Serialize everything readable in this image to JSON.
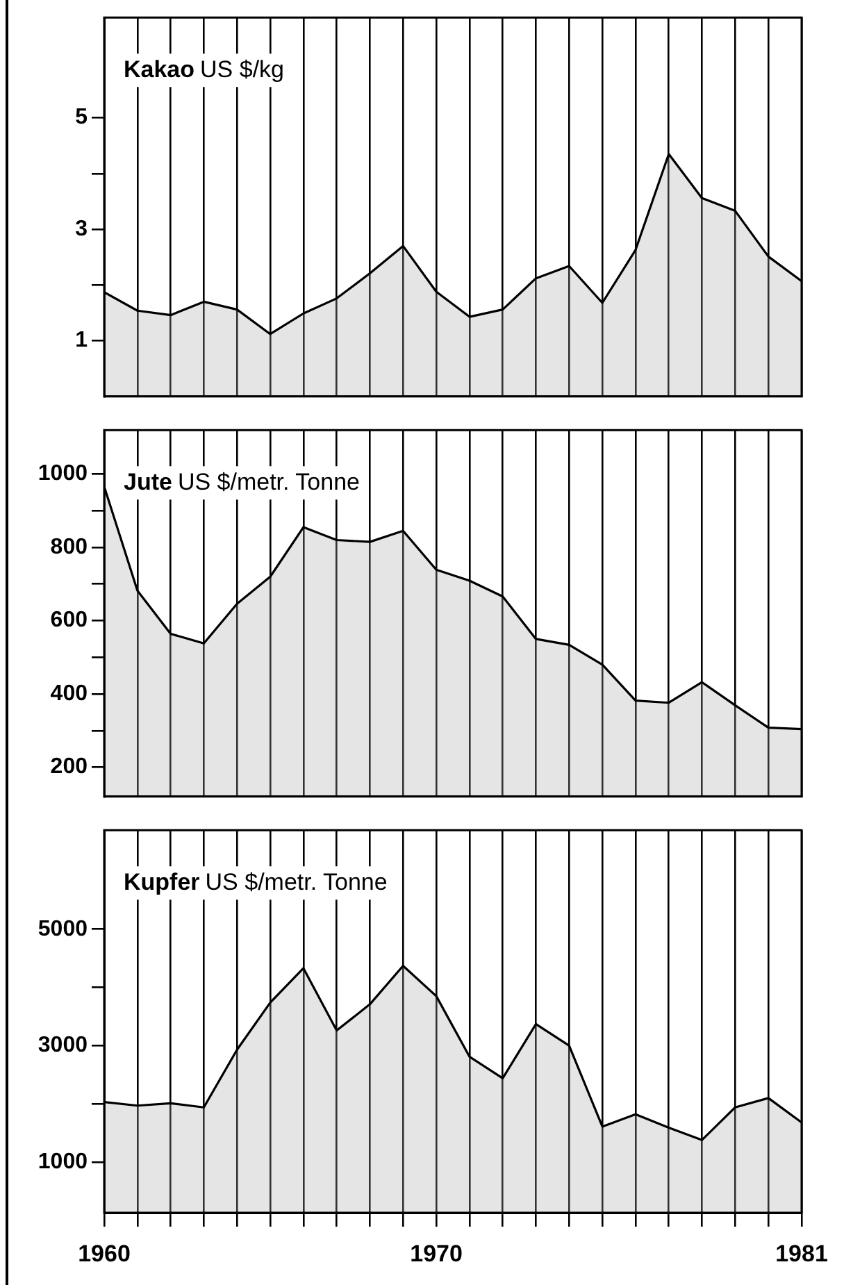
{
  "chart_data": [
    {
      "type": "area",
      "title": "Kakao",
      "ylabel": "US $/kg",
      "x": [
        1960,
        1961,
        1962,
        1963,
        1964,
        1965,
        1966,
        1967,
        1968,
        1969,
        1970,
        1971,
        1972,
        1973,
        1974,
        1975,
        1976,
        1977,
        1978,
        1979,
        1980,
        1981
      ],
      "series": [
        {
          "color": "#000000",
          "values": [
            1.87,
            1.54,
            1.46,
            1.7,
            1.56,
            1.12,
            1.49,
            1.76,
            2.21,
            2.7,
            1.88,
            1.43,
            1.56,
            2.12,
            2.34,
            1.68,
            2.63,
            4.35,
            3.56,
            3.33,
            2.51,
            2.07
          ]
        }
      ],
      "xlim": [
        1960,
        1981
      ],
      "xticks": [
        {
          "value": 1960,
          "label": null
        },
        {
          "value": 1961,
          "label": null
        },
        {
          "value": 1962,
          "label": null
        },
        {
          "value": 1963,
          "label": null
        },
        {
          "value": 1964,
          "label": null
        },
        {
          "value": 1965,
          "label": null
        },
        {
          "value": 1966,
          "label": null
        },
        {
          "value": 1967,
          "label": null
        },
        {
          "value": 1968,
          "label": null
        },
        {
          "value": 1969,
          "label": null
        },
        {
          "value": 1970,
          "label": null
        },
        {
          "value": 1971,
          "label": null
        },
        {
          "value": 1972,
          "label": null
        },
        {
          "value": 1973,
          "label": null
        },
        {
          "value": 1974,
          "label": null
        },
        {
          "value": 1975,
          "label": null
        },
        {
          "value": 1976,
          "label": null
        },
        {
          "value": 1977,
          "label": null
        },
        {
          "value": 1978,
          "label": null
        },
        {
          "value": 1979,
          "label": null
        },
        {
          "value": 1980,
          "label": null
        },
        {
          "value": 1981,
          "label": null
        }
      ],
      "ylim": [
        0,
        6.8
      ],
      "yticks": [
        1,
        {
          "value": 2,
          "label": null
        },
        3,
        {
          "value": 4,
          "label": null
        },
        5
      ],
      "grid": "x",
      "legend": false,
      "tick_labels": "y"
    },
    {
      "type": "area",
      "title": "Jute",
      "ylabel": "US $/metr. Tonne",
      "x": [
        1960,
        1961,
        1962,
        1963,
        1964,
        1965,
        1966,
        1967,
        1968,
        1969,
        1970,
        1971,
        1972,
        1973,
        1974,
        1975,
        1976,
        1977,
        1978,
        1979,
        1980,
        1981
      ],
      "series": [
        {
          "color": "#000000",
          "values": [
            966,
            682,
            564,
            538,
            646,
            720,
            855,
            820,
            815,
            845,
            739,
            709,
            666,
            550,
            534,
            480,
            382,
            376,
            432,
            369,
            308,
            304
          ]
        }
      ],
      "xlim": [
        1960,
        1981
      ],
      "xticks": [
        {
          "value": 1960,
          "label": null
        },
        {
          "value": 1961,
          "label": null
        },
        {
          "value": 1962,
          "label": null
        },
        {
          "value": 1963,
          "label": null
        },
        {
          "value": 1964,
          "label": null
        },
        {
          "value": 1965,
          "label": null
        },
        {
          "value": 1966,
          "label": null
        },
        {
          "value": 1967,
          "label": null
        },
        {
          "value": 1968,
          "label": null
        },
        {
          "value": 1969,
          "label": null
        },
        {
          "value": 1970,
          "label": null
        },
        {
          "value": 1971,
          "label": null
        },
        {
          "value": 1972,
          "label": null
        },
        {
          "value": 1973,
          "label": null
        },
        {
          "value": 1974,
          "label": null
        },
        {
          "value": 1975,
          "label": null
        },
        {
          "value": 1976,
          "label": null
        },
        {
          "value": 1977,
          "label": null
        },
        {
          "value": 1978,
          "label": null
        },
        {
          "value": 1979,
          "label": null
        },
        {
          "value": 1980,
          "label": null
        },
        {
          "value": 1981,
          "label": null
        }
      ],
      "ylim": [
        120,
        1120
      ],
      "yticks": [
        200,
        {
          "value": 300,
          "label": null
        },
        400,
        {
          "value": 500,
          "label": null
        },
        600,
        {
          "value": 700,
          "label": null
        },
        800,
        {
          "value": 900,
          "label": null
        },
        1000
      ],
      "grid": "x",
      "legend": false,
      "tick_labels": "y"
    },
    {
      "type": "area",
      "title": "Kupfer",
      "ylabel": "US $/metr. Tonne",
      "x": [
        1960,
        1961,
        1962,
        1963,
        1964,
        1965,
        1966,
        1967,
        1968,
        1969,
        1970,
        1971,
        1972,
        1973,
        1974,
        1975,
        1976,
        1977,
        1978,
        1979,
        1980,
        1981
      ],
      "series": [
        {
          "color": "#000000",
          "values": [
            2030,
            1970,
            2010,
            1940,
            2930,
            3740,
            4330,
            3260,
            3710,
            4370,
            3850,
            2810,
            2440,
            3370,
            3000,
            1610,
            1820,
            1590,
            1380,
            1940,
            2100,
            1680
          ]
        }
      ],
      "xlim": [
        1960,
        1981
      ],
      "xticks": [
        1960,
        {
          "value": 1961,
          "label": null
        },
        {
          "value": 1962,
          "label": null
        },
        {
          "value": 1963,
          "label": null
        },
        {
          "value": 1964,
          "label": null
        },
        {
          "value": 1965,
          "label": null
        },
        {
          "value": 1966,
          "label": null
        },
        {
          "value": 1967,
          "label": null
        },
        {
          "value": 1968,
          "label": null
        },
        {
          "value": 1969,
          "label": null
        },
        1970,
        {
          "value": 1971,
          "label": null
        },
        {
          "value": 1972,
          "label": null
        },
        {
          "value": 1973,
          "label": null
        },
        {
          "value": 1974,
          "label": null
        },
        {
          "value": 1975,
          "label": null
        },
        {
          "value": 1976,
          "label": null
        },
        {
          "value": 1977,
          "label": null
        },
        {
          "value": 1978,
          "label": null
        },
        {
          "value": 1979,
          "label": null
        },
        {
          "value": 1980,
          "label": null
        },
        1981
      ],
      "ylim": [
        130,
        6700
      ],
      "yticks": [
        1000,
        {
          "value": 2000,
          "label": null
        },
        3000,
        {
          "value": 4000,
          "label": null
        },
        5000
      ],
      "grid": "x",
      "legend": false
    }
  ]
}
